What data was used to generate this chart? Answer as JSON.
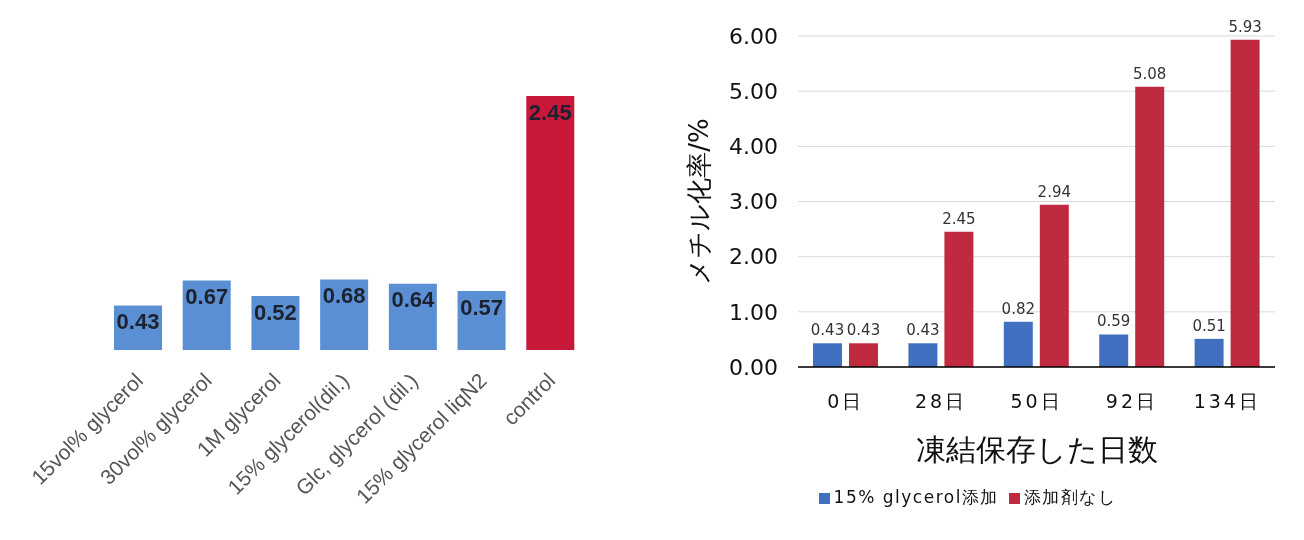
{
  "chart_data": [
    {
      "type": "bar",
      "categories": [
        "15vol% glycerol",
        "30vol% glycerol",
        "1M glycerol",
        "15% glycerol(dil.)",
        "Glc, glycerol (dil.)",
        "15% glycerol liqN2",
        "control"
      ],
      "values": [
        0.43,
        0.67,
        0.52,
        0.68,
        0.64,
        0.57,
        2.45
      ],
      "colors": [
        "#5b8fd3",
        "#5b8fd3",
        "#5b8fd3",
        "#5b8fd3",
        "#5b8fd3",
        "#5b8fd3",
        "#c8183a"
      ],
      "data_labels": true,
      "tick_labels": "x"
    },
    {
      "type": "bar",
      "categories": [
        "0日",
        "28日",
        "50日",
        "92日",
        "134日"
      ],
      "series": [
        {
          "name": "15% glycerol添加",
          "color": "#4170c0",
          "values": [
            0.43,
            0.43,
            0.82,
            0.59,
            0.51
          ]
        },
        {
          "name": "添加剤なし",
          "color": "#c02a40",
          "values": [
            0.43,
            2.45,
            2.94,
            5.08,
            5.93
          ]
        }
      ],
      "xlabel": "凍結保存した日数",
      "ylabel": "メチル化率/%",
      "ylim": [
        0,
        6
      ],
      "yticks": [
        {
          "value": 0,
          "label": "0.00"
        },
        {
          "value": 1,
          "label": "1.00"
        },
        {
          "value": 2,
          "label": "2.00"
        },
        {
          "value": 3,
          "label": "3.00"
        },
        {
          "value": 4,
          "label": "4.00"
        },
        {
          "value": 5,
          "label": "5.00"
        },
        {
          "value": 6,
          "label": "6.00"
        }
      ],
      "grid": "y",
      "legend": "bottom",
      "data_labels": true
    }
  ]
}
